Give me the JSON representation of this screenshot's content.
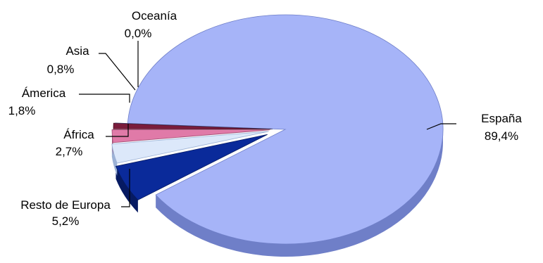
{
  "chart_data": {
    "type": "pie",
    "title": "",
    "slices": [
      {
        "label": "España",
        "value": 89.4,
        "value_text": "89,4%",
        "color": "#a6b4f8",
        "side_color": "#6f7fc8"
      },
      {
        "label": "Resto de Europa",
        "value": 5.2,
        "value_text": "5,2%",
        "color": "#0a2a9a",
        "side_color": "#061a62"
      },
      {
        "label": "África",
        "value": 2.7,
        "value_text": "2,7%",
        "color": "#dce8fa",
        "side_color": "#9cb2d6"
      },
      {
        "label": "Ámerica",
        "value": 1.8,
        "value_text": "1,8%",
        "color": "#e07aa8",
        "side_color": "#a04c74"
      },
      {
        "label": "Asia",
        "value": 0.8,
        "value_text": "0,8%",
        "color": "#7a1c3c",
        "side_color": "#4e0f25"
      },
      {
        "label": "Oceanía",
        "value": 0.0,
        "value_text": "0,0%",
        "color": "#6a6aa8",
        "side_color": "#40406c"
      }
    ],
    "style": "3d-exploded"
  }
}
